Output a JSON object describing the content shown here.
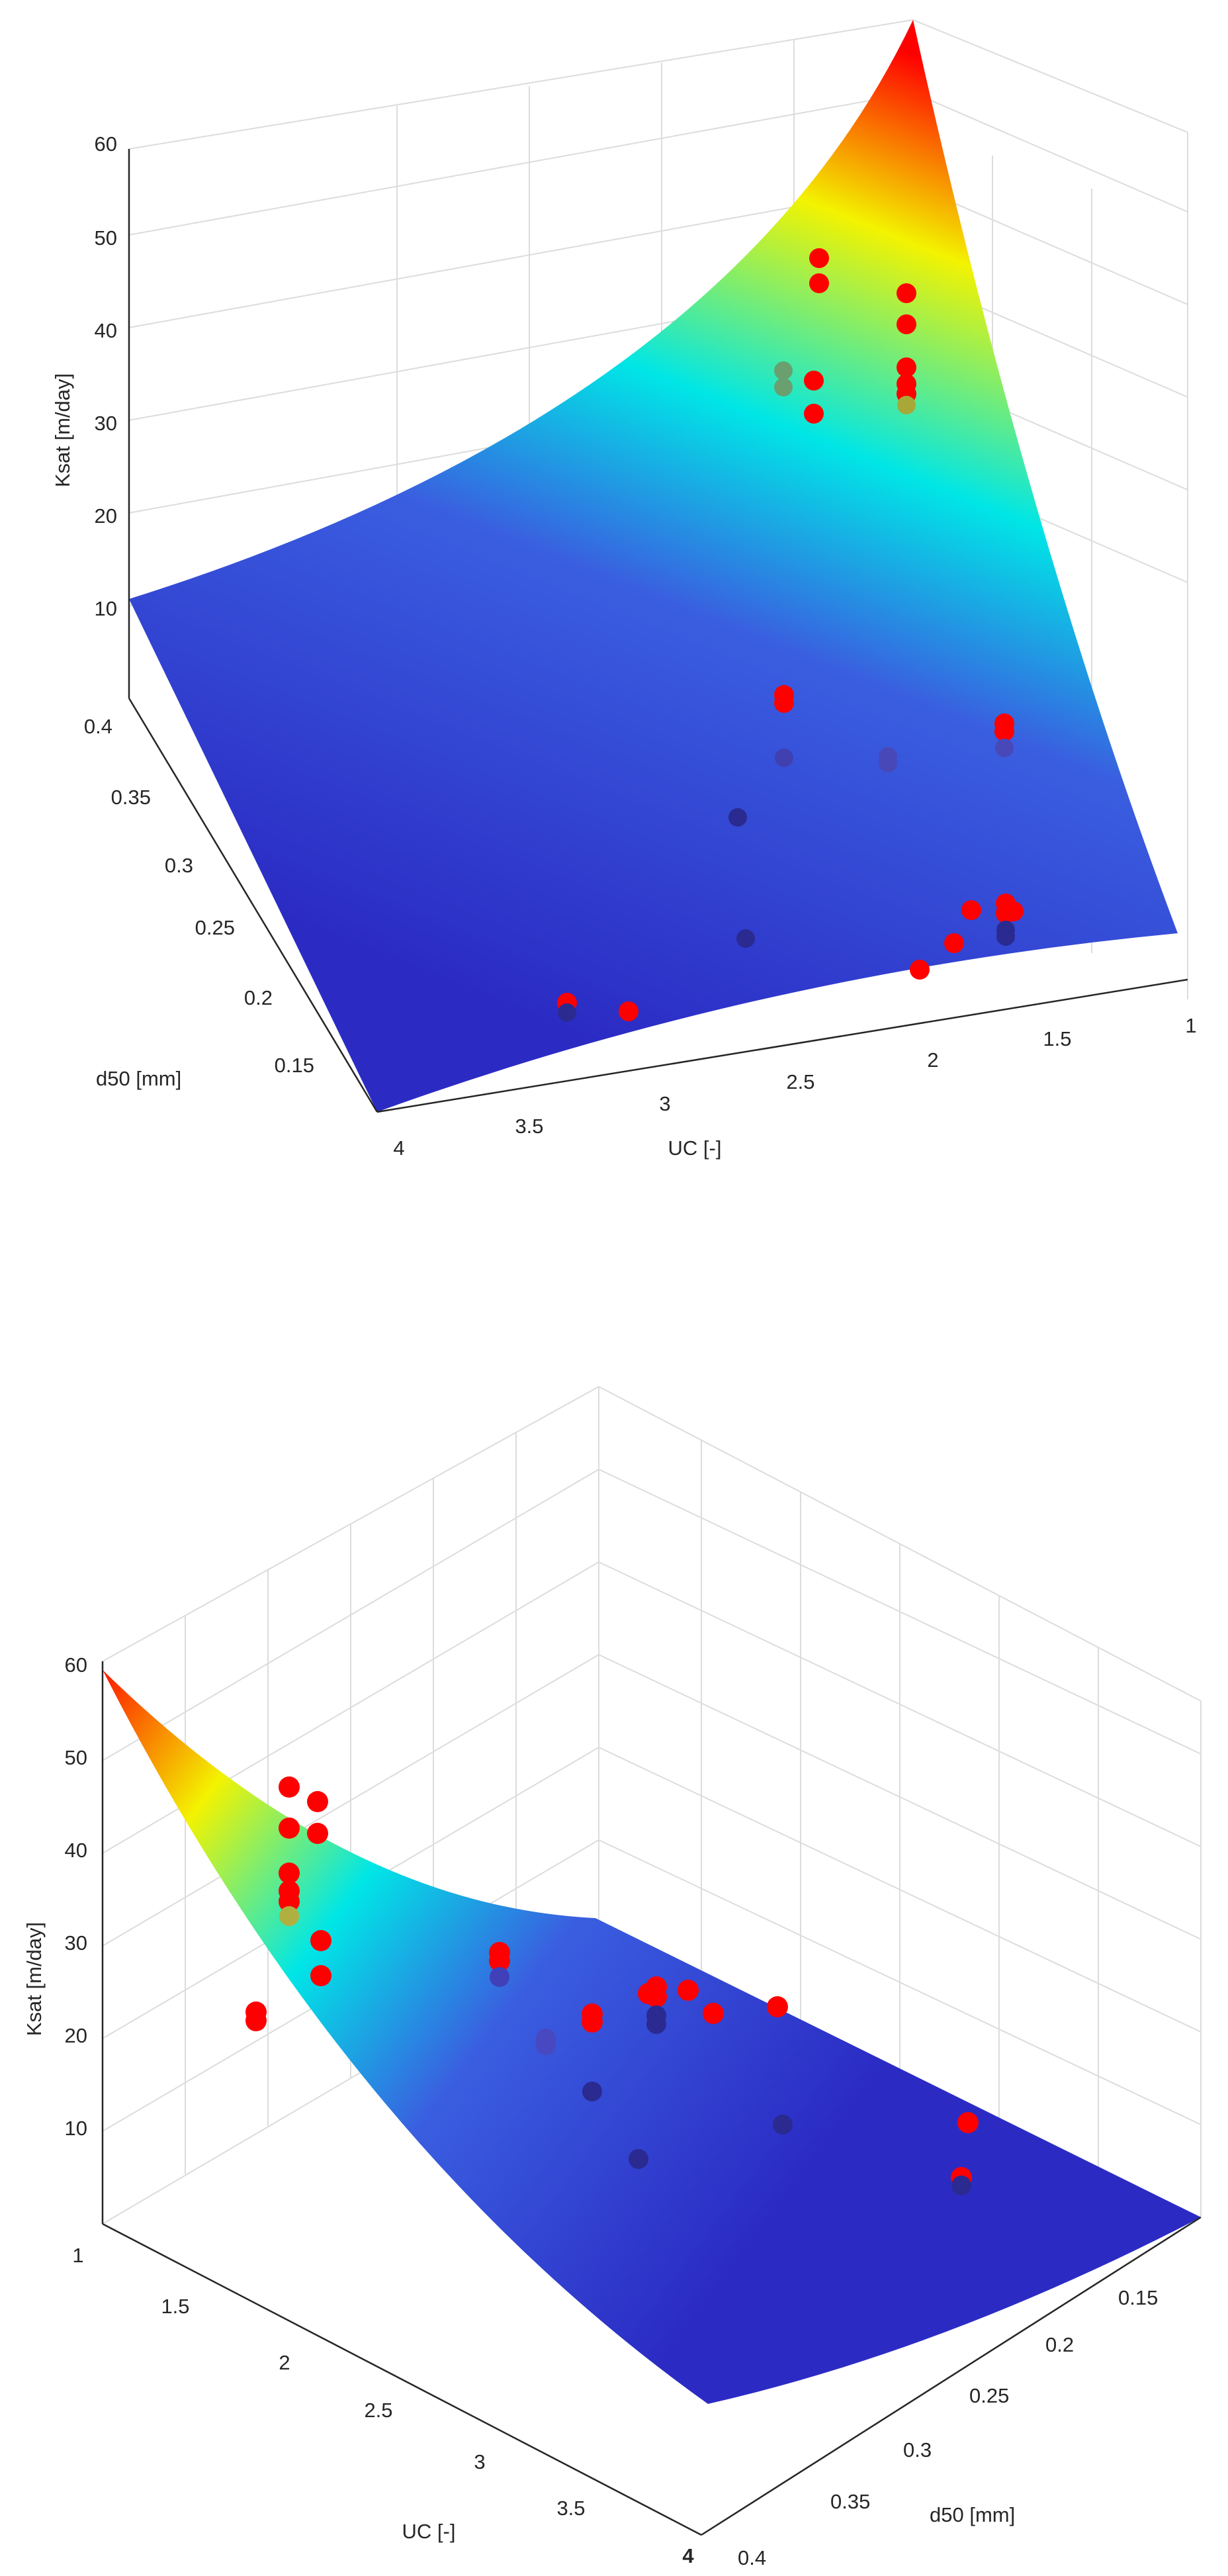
{
  "chart_data": [
    {
      "type": "surface3d",
      "panel": "top",
      "zlabel": "Ksat [m/day]",
      "ylabel": "d50 [mm]",
      "xlabel": "UC [-]",
      "zlim": [
        0,
        60
      ],
      "z_ticks": [
        "10",
        "20",
        "30",
        "40",
        "50",
        "60"
      ],
      "d50_ticks": [
        "0.15",
        "0.2",
        "0.25",
        "0.3",
        "0.35",
        "0.4"
      ],
      "uc_ticks": [
        "1",
        "1.5",
        "2",
        "2.5",
        "3",
        "3.5",
        "4"
      ],
      "surface_corners": {
        "uc1_d040": 61,
        "uc4_d040": 12,
        "uc1_d015": 5,
        "uc4_d015": 2
      },
      "colormap": [
        "#2b2bc4",
        "#3a5ee0",
        "#00e6e6",
        "#f3f300",
        "#ff0000"
      ],
      "points_color": "#ff0000"
    },
    {
      "type": "surface3d",
      "panel": "bottom",
      "zlabel": "Ksat [m/day]",
      "xlabel": "UC [-]",
      "ylabel": "d50 [mm]",
      "zlim": [
        0,
        60
      ],
      "z_ticks": [
        "10",
        "20",
        "30",
        "40",
        "50",
        "60"
      ],
      "uc_ticks": [
        "1",
        "1.5",
        "2",
        "2.5",
        "3",
        "3.5",
        "4"
      ],
      "d50_ticks": [
        "0.15",
        "0.2",
        "0.25",
        "0.3",
        "0.35",
        "0.4"
      ],
      "colormap": [
        "#2b2bc4",
        "#3a5ee0",
        "#00e6e6",
        "#f3f300",
        "#ff0000"
      ],
      "points_color": "#ff0000"
    }
  ]
}
